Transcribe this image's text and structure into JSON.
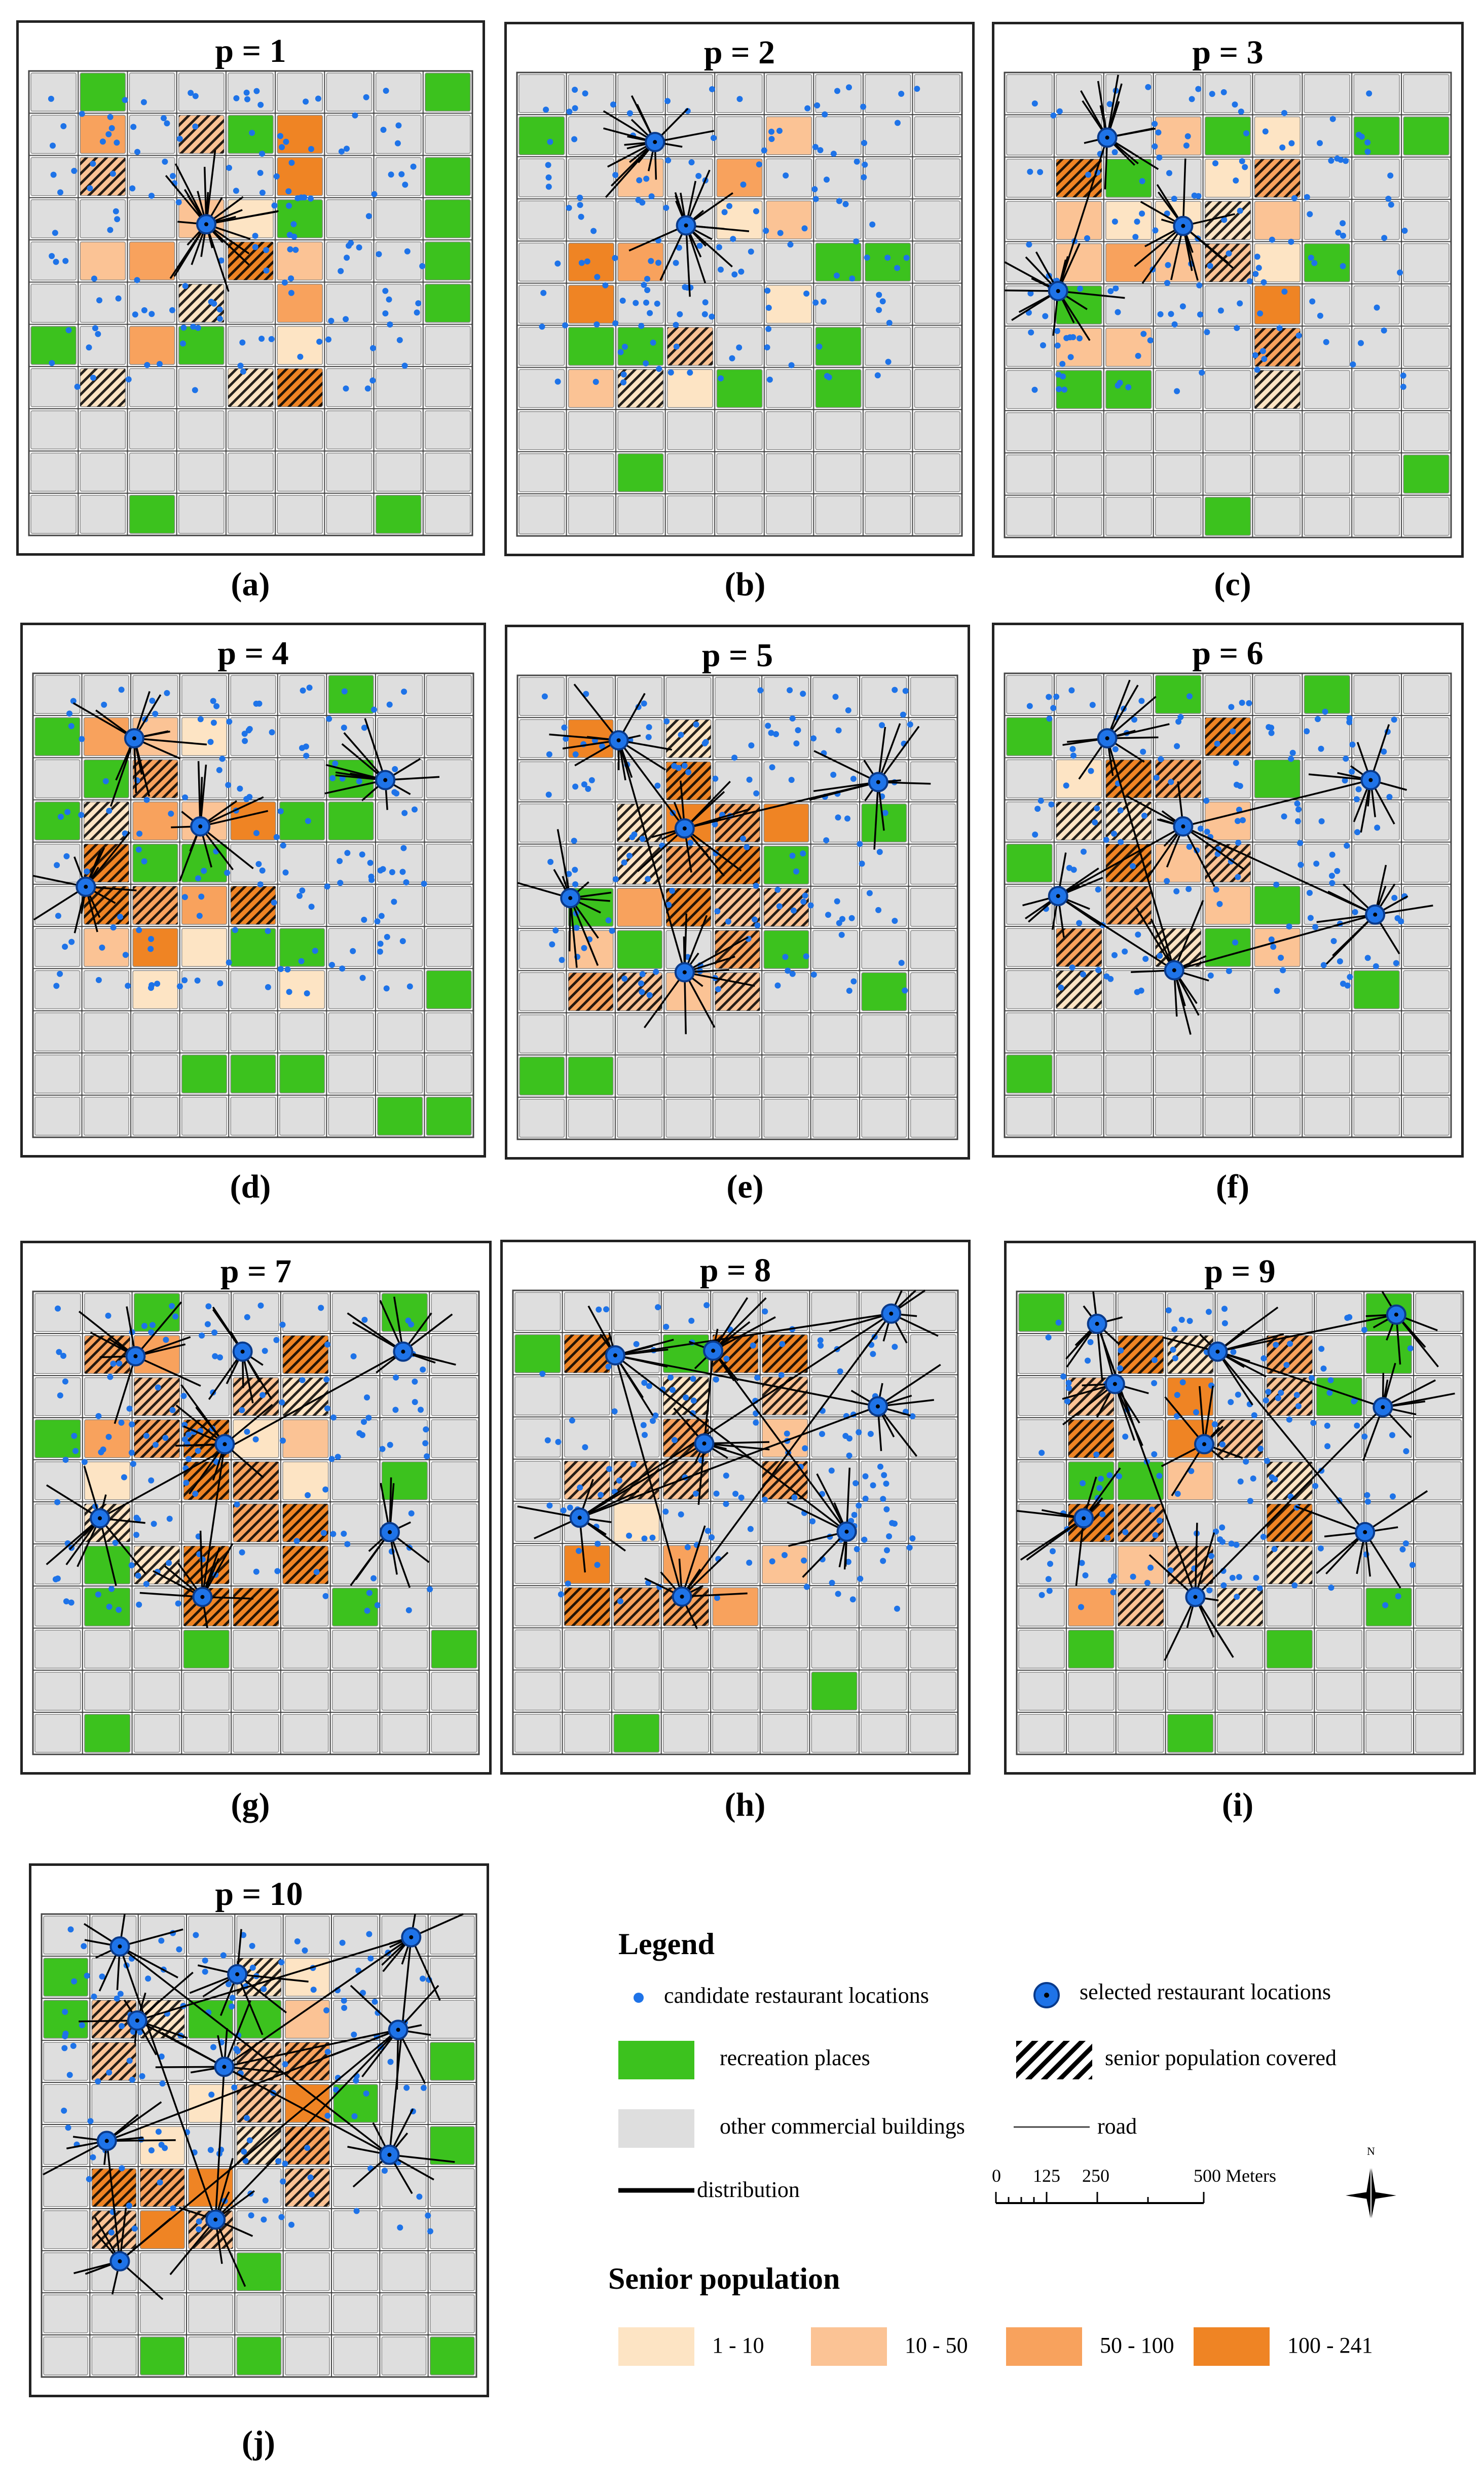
{
  "panels": [
    {
      "id": "a",
      "title": "p = 1",
      "caption": "(a)"
    },
    {
      "id": "b",
      "title": "p = 2",
      "caption": "(b)"
    },
    {
      "id": "c",
      "title": "p = 3",
      "caption": "(c)"
    },
    {
      "id": "d",
      "title": "p = 4",
      "caption": "(d)"
    },
    {
      "id": "e",
      "title": "p = 5",
      "caption": "(e)"
    },
    {
      "id": "f",
      "title": "p = 6",
      "caption": "(f)"
    },
    {
      "id": "g",
      "title": "p = 7",
      "caption": "(g)"
    },
    {
      "id": "h",
      "title": "p = 8",
      "caption": "(h)"
    },
    {
      "id": "i",
      "title": "p = 9",
      "caption": "(i)"
    },
    {
      "id": "j",
      "title": "p = 10",
      "caption": "(j)"
    }
  ],
  "legend": {
    "title": "Legend",
    "candidate": "candidate restaurant locations",
    "selected": "selected restaurant locations",
    "recreation": "recreation places",
    "covered": "senior population covered",
    "commercial": "other commercial buildings",
    "road": "road",
    "distribution": "distribution",
    "scale_ticks": [
      "0",
      "125",
      "250",
      "500 Meters"
    ],
    "north": "N"
  },
  "senior_population": {
    "title": "Senior population",
    "classes": [
      {
        "label": "1 - 10",
        "color": "#fde4c4"
      },
      {
        "label": "10 - 50",
        "color": "#fbc395"
      },
      {
        "label": "50 - 100",
        "color": "#f8a25d"
      },
      {
        "label": "100 - 241",
        "color": "#ef8424"
      }
    ]
  },
  "colors": {
    "candidate": "#1e73e8",
    "selected": "#1e73e8",
    "recreation": "#3cc21e",
    "commercial": "#dedede",
    "road": "#444444",
    "distribution": "#000000"
  }
}
